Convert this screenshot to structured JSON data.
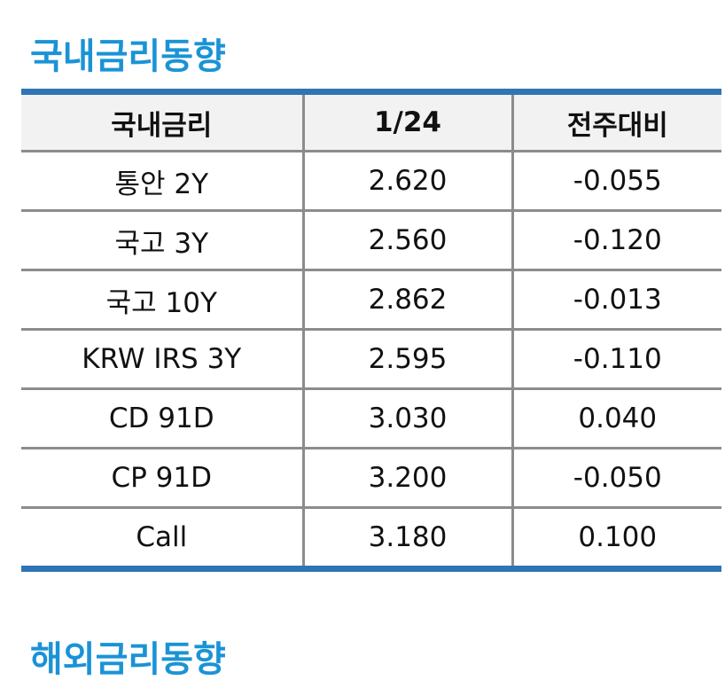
{
  "sections": {
    "domestic_title": "국내금리동향",
    "overseas_title": "해외금리동향"
  },
  "table": {
    "headers": [
      "국내금리",
      "1/24",
      "전주대비"
    ],
    "rows": [
      {
        "name": "통안 2Y",
        "value": "2.620",
        "change": "-0.055",
        "direction": "down"
      },
      {
        "name": "국고 3Y",
        "value": "2.560",
        "change": "-0.120",
        "direction": "down"
      },
      {
        "name": "국고 10Y",
        "value": "2.862",
        "change": "-0.013",
        "direction": "down"
      },
      {
        "name": "KRW IRS 3Y",
        "value": "2.595",
        "change": "-0.110",
        "direction": "down"
      },
      {
        "name": "CD 91D",
        "value": "3.030",
        "change": "0.040",
        "direction": "up"
      },
      {
        "name": "CP 91D",
        "value": "3.200",
        "change": "-0.050",
        "direction": "down"
      },
      {
        "name": "Call",
        "value": "3.180",
        "change": "0.100",
        "direction": "up"
      }
    ]
  },
  "colors": {
    "title": "#1a93d6",
    "table_border_accent": "#2f75b5",
    "grid": "#8c8c8c",
    "header_bg": "#f2f2f2",
    "negative_change": "#1010e0",
    "positive_change": "#e01010"
  }
}
